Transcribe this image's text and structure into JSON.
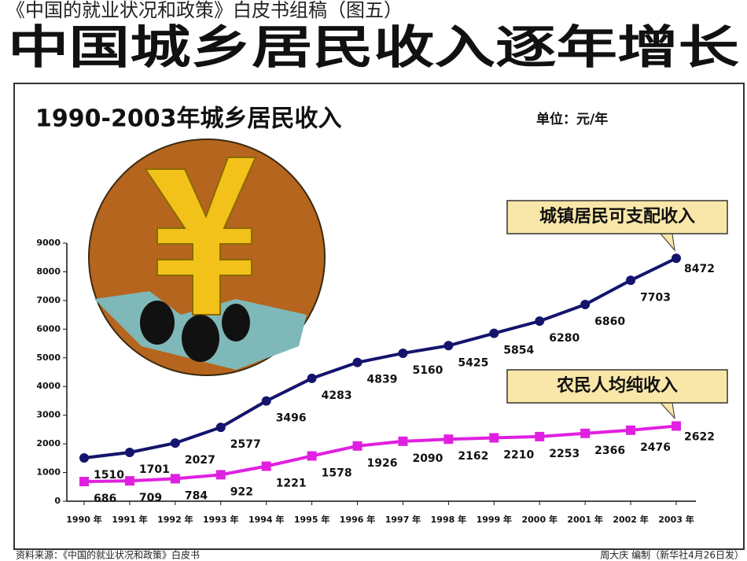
{
  "chart_data": {
    "type": "line",
    "supertitle": "《中国的就业状况和政策》白皮书组稿（图五）",
    "headline": "中国城乡居民收入逐年增长",
    "title": "1990-2003年城乡居民收入",
    "unit": "单位：元/年",
    "source": "资料来源：《中国的就业状况和政策》白皮书",
    "credit": "周大庆 编制（新华社4月26日发）",
    "categories": [
      "1990 年",
      "1991 年",
      "1992 年",
      "1993 年",
      "1994 年",
      "1995 年",
      "1996 年",
      "1997 年",
      "1998 年",
      "1999 年",
      "2000 年",
      "2001 年",
      "2002 年",
      "2003 年"
    ],
    "series": [
      {
        "name": "城镇居民可支配收入",
        "color": "#14146e",
        "marker": "circle",
        "values": [
          1510,
          1701,
          2027,
          2577,
          3496,
          4283,
          4839,
          5160,
          5425,
          5854,
          6280,
          6860,
          7703,
          8472
        ]
      },
      {
        "name": "农民人均纯收入",
        "color": "#e020e0",
        "marker": "square",
        "values": [
          686,
          709,
          784,
          922,
          1221,
          1578,
          1926,
          2090,
          2162,
          2210,
          2253,
          2366,
          2476,
          2622
        ]
      }
    ],
    "ylim": [
      0,
      9000
    ],
    "yticks": [
      0,
      1000,
      2000,
      3000,
      4000,
      5000,
      6000,
      7000,
      8000,
      9000
    ],
    "grid": false
  }
}
